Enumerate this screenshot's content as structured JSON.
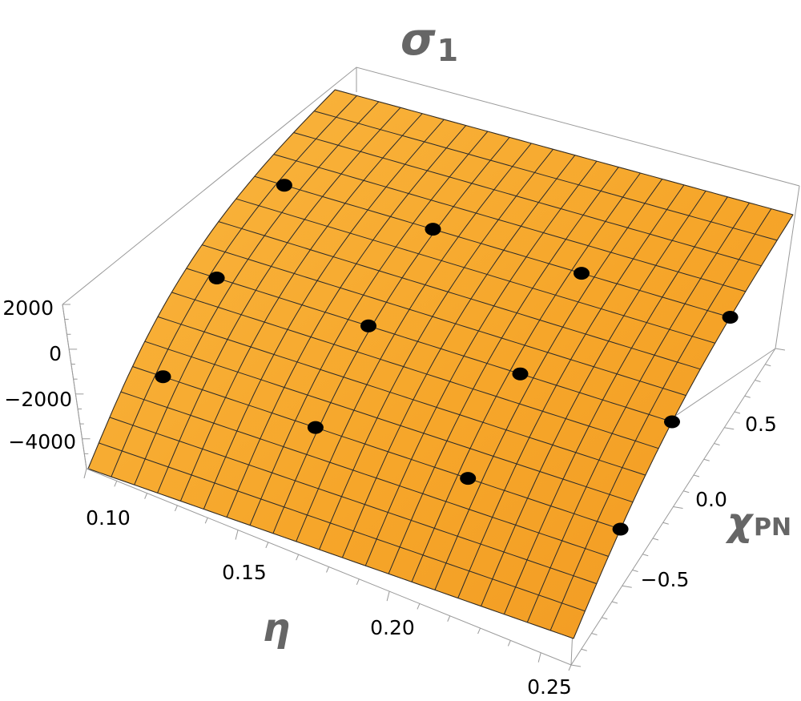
{
  "chart_data": {
    "type": "surface3d",
    "title_symbol": "σ",
    "title_subscript": "1",
    "xlabel": "η",
    "ylabel_symbol": "χ",
    "ylabel_subscript": "PN",
    "zlabel": "",
    "x_ticks": [
      "0.10",
      "0.15",
      "0.20",
      "0.25"
    ],
    "y_ticks": [
      "0.5",
      "0.0",
      "−0.5"
    ],
    "z_ticks": [
      "2000",
      "0",
      "−2000",
      "−4000"
    ],
    "xlim": [
      0.09,
      0.25
    ],
    "ylim": [
      -1.0,
      1.0
    ],
    "zlim": [
      -5200,
      2400
    ],
    "surface_color": "#f7a82c",
    "surface_edge_color": "#e08a1c",
    "point_color": "#000000",
    "sample_points": [
      {
        "eta": 0.1,
        "chi": -0.5,
        "value": 2100
      },
      {
        "eta": 0.1,
        "chi": 0.0,
        "value": 1500
      },
      {
        "eta": 0.1,
        "chi": 0.5,
        "value": 1400
      },
      {
        "eta": 0.15,
        "chi": -0.5,
        "value": -1300
      },
      {
        "eta": 0.15,
        "chi": 0.0,
        "value": -900
      },
      {
        "eta": 0.15,
        "chi": 0.5,
        "value": -700
      },
      {
        "eta": 0.2,
        "chi": -0.5,
        "value": -3000
      },
      {
        "eta": 0.2,
        "chi": 0.0,
        "value": -2600
      },
      {
        "eta": 0.2,
        "chi": 0.5,
        "value": -2300
      },
      {
        "eta": 0.25,
        "chi": -0.5,
        "value": -4900
      },
      {
        "eta": 0.25,
        "chi": 0.0,
        "value": -4400
      },
      {
        "eta": 0.25,
        "chi": 0.5,
        "value": -3900
      }
    ]
  }
}
